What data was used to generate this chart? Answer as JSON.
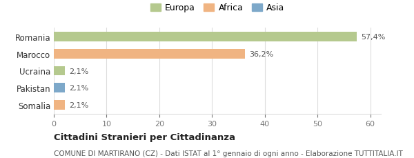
{
  "categories": [
    "Romania",
    "Marocco",
    "Ucraina",
    "Pakistan",
    "Somalia"
  ],
  "values": [
    57.4,
    36.2,
    2.1,
    2.1,
    2.1
  ],
  "labels": [
    "57,4%",
    "36,2%",
    "2,1%",
    "2,1%",
    "2,1%"
  ],
  "bar_colors": [
    "#b5c98e",
    "#f0b482",
    "#b5c98e",
    "#7da8c9",
    "#f0b482"
  ],
  "legend_items": [
    {
      "label": "Europa",
      "color": "#b5c98e"
    },
    {
      "label": "Africa",
      "color": "#f0b482"
    },
    {
      "label": "Asia",
      "color": "#7da8c9"
    }
  ],
  "xlim": [
    0,
    62
  ],
  "xticks": [
    0,
    10,
    20,
    30,
    40,
    50,
    60
  ],
  "title_bold": "Cittadini Stranieri per Cittadinanza",
  "subtitle": "COMUNE DI MARTIRANO (CZ) - Dati ISTAT al 1° gennaio di ogni anno - Elaborazione TUTTITALIA.IT",
  "background_color": "#ffffff",
  "grid_color": "#dddddd"
}
